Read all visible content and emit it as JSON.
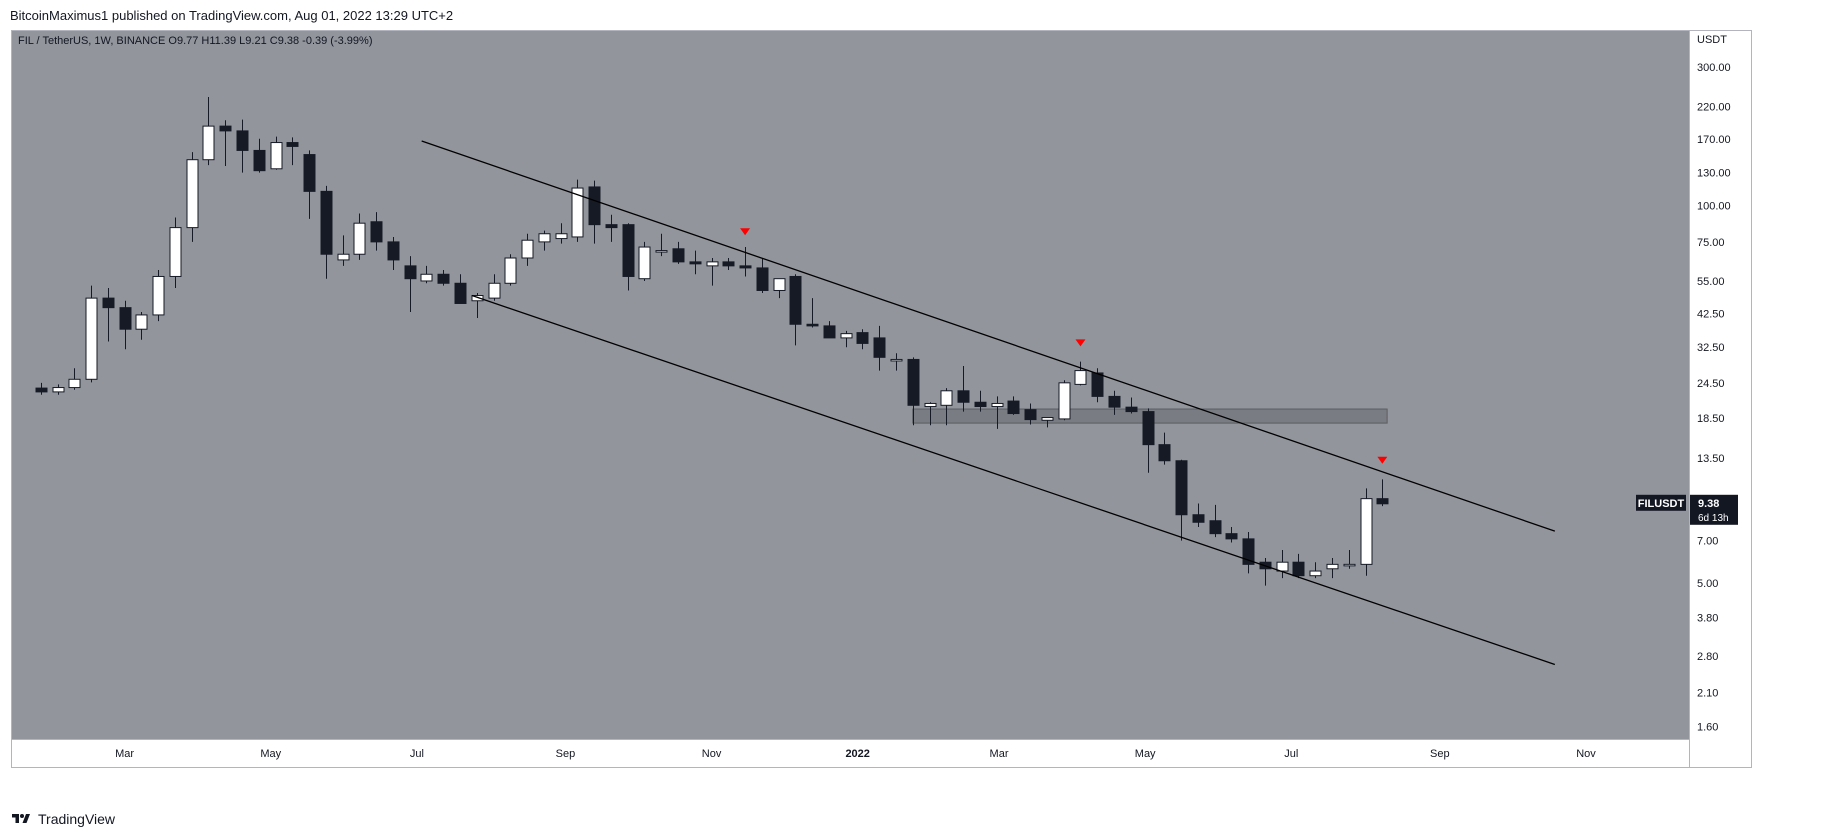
{
  "header": {
    "published_line": "BitcoinMaximus1 published on TradingView.com, Aug 01, 2022 13:29 UTC+2"
  },
  "watermark": {
    "text": "TradingView",
    "icon": "tradingview-logo-icon"
  },
  "colors": {
    "plot_bg": "#92959c",
    "up_body": "#ffffff",
    "down_body": "#161a25",
    "wick": "#161a25",
    "trendline": "#000000",
    "zone": "#6b6e74",
    "marker": "#ff0000",
    "axis_text": "#131722",
    "label_bg": "#131722",
    "label_text": "#ffffff"
  },
  "chart_data": {
    "type": "candlestick",
    "symbol_legend": {
      "title": "FIL / TetherUS, 1W, BINANCE",
      "items": [
        {
          "key": "O",
          "value": "9.77"
        },
        {
          "key": "H",
          "value": "11.39"
        },
        {
          "key": "L",
          "value": "9.21"
        },
        {
          "key": "C",
          "value": "9.38"
        }
      ],
      "change": "-0.39 (-3.99%)"
    },
    "y_axis": {
      "unit": "USDT",
      "scale": "log",
      "range": [
        1.45,
        400
      ],
      "ticks": [
        "300.00",
        "220.00",
        "170.00",
        "130.00",
        "100.00",
        "75.00",
        "55.00",
        "42.50",
        "32.50",
        "24.50",
        "18.50",
        "13.50",
        "7.00",
        "5.00",
        "3.80",
        "2.80",
        "2.10",
        "1.60"
      ]
    },
    "x_axis": {
      "ticks": [
        "Mar",
        "May",
        "Jul",
        "Sep",
        "Nov",
        "2022",
        "Mar",
        "May",
        "Jul",
        "Sep",
        "Nov"
      ],
      "tick_dates": [
        "2021-03-01",
        "2021-05-01",
        "2021-07-01",
        "2021-09-01",
        "2021-11-01",
        "2022-01-01",
        "2022-03-01",
        "2022-05-01",
        "2022-07-01",
        "2022-09-01",
        "2022-11-01"
      ],
      "range": [
        "2021-01-13",
        "2022-12-14"
      ]
    },
    "grid": false,
    "candles": [
      {
        "date": "2021-01-25",
        "o": 23.5,
        "h": 24.5,
        "l": 22.3,
        "c": 22.8
      },
      {
        "date": "2021-02-01",
        "o": 22.8,
        "h": 24.2,
        "l": 22.3,
        "c": 23.6
      },
      {
        "date": "2021-02-08",
        "o": 23.6,
        "h": 27.5,
        "l": 23.2,
        "c": 25.2
      },
      {
        "date": "2021-02-15",
        "o": 25.2,
        "h": 53,
        "l": 24.6,
        "c": 48
      },
      {
        "date": "2021-02-22",
        "o": 48,
        "h": 52,
        "l": 34,
        "c": 44.5
      },
      {
        "date": "2021-03-01",
        "o": 44.5,
        "h": 47,
        "l": 32,
        "c": 37.5
      },
      {
        "date": "2021-03-08",
        "o": 37.5,
        "h": 43,
        "l": 34.5,
        "c": 42
      },
      {
        "date": "2021-03-15",
        "o": 42,
        "h": 60,
        "l": 40,
        "c": 57
      },
      {
        "date": "2021-03-22",
        "o": 57,
        "h": 91,
        "l": 52,
        "c": 84
      },
      {
        "date": "2021-03-29",
        "o": 84,
        "h": 153,
        "l": 75,
        "c": 144
      },
      {
        "date": "2021-04-05",
        "o": 144,
        "h": 237,
        "l": 138,
        "c": 188
      },
      {
        "date": "2021-04-12",
        "o": 188,
        "h": 197,
        "l": 137,
        "c": 181
      },
      {
        "date": "2021-04-19",
        "o": 181,
        "h": 198,
        "l": 130,
        "c": 155
      },
      {
        "date": "2021-04-26",
        "o": 155,
        "h": 170,
        "l": 130,
        "c": 132
      },
      {
        "date": "2021-05-03",
        "o": 134,
        "h": 173,
        "l": 133,
        "c": 165
      },
      {
        "date": "2021-05-10",
        "o": 165,
        "h": 172,
        "l": 138,
        "c": 160
      },
      {
        "date": "2021-05-17",
        "o": 150,
        "h": 155,
        "l": 90,
        "c": 112
      },
      {
        "date": "2021-05-24",
        "o": 112,
        "h": 117,
        "l": 56,
        "c": 68
      },
      {
        "date": "2021-05-31",
        "o": 65,
        "h": 79,
        "l": 62,
        "c": 68
      },
      {
        "date": "2021-06-07",
        "o": 68,
        "h": 94,
        "l": 65,
        "c": 87
      },
      {
        "date": "2021-06-14",
        "o": 88,
        "h": 95,
        "l": 70,
        "c": 75
      },
      {
        "date": "2021-06-21",
        "o": 75,
        "h": 78,
        "l": 60,
        "c": 65
      },
      {
        "date": "2021-06-28",
        "o": 62,
        "h": 67,
        "l": 43,
        "c": 56
      },
      {
        "date": "2021-07-05",
        "o": 55,
        "h": 62,
        "l": 54,
        "c": 58
      },
      {
        "date": "2021-07-12",
        "o": 58,
        "h": 60,
        "l": 53,
        "c": 54
      },
      {
        "date": "2021-07-19",
        "o": 54,
        "h": 58,
        "l": 46,
        "c": 46
      },
      {
        "date": "2021-07-26",
        "o": 47,
        "h": 50,
        "l": 41,
        "c": 49
      },
      {
        "date": "2021-08-02",
        "o": 48,
        "h": 58,
        "l": 47,
        "c": 54
      },
      {
        "date": "2021-08-09",
        "o": 54,
        "h": 68,
        "l": 53,
        "c": 66
      },
      {
        "date": "2021-08-16",
        "o": 66,
        "h": 80,
        "l": 62,
        "c": 76
      },
      {
        "date": "2021-08-23",
        "o": 75,
        "h": 82,
        "l": 70,
        "c": 80
      },
      {
        "date": "2021-08-30",
        "o": 77,
        "h": 87,
        "l": 74,
        "c": 80
      },
      {
        "date": "2021-09-06",
        "o": 78,
        "h": 123,
        "l": 75,
        "c": 115
      },
      {
        "date": "2021-09-13",
        "o": 116,
        "h": 122,
        "l": 74,
        "c": 86
      },
      {
        "date": "2021-09-20",
        "o": 86,
        "h": 93,
        "l": 75,
        "c": 84
      },
      {
        "date": "2021-09-27",
        "o": 86,
        "h": 87,
        "l": 51,
        "c": 57
      },
      {
        "date": "2021-10-04",
        "o": 56,
        "h": 75,
        "l": 55,
        "c": 72
      },
      {
        "date": "2021-10-11",
        "o": 70,
        "h": 80,
        "l": 67,
        "c": 70
      },
      {
        "date": "2021-10-18",
        "o": 71,
        "h": 75,
        "l": 63,
        "c": 64
      },
      {
        "date": "2021-10-25",
        "o": 64,
        "h": 70,
        "l": 58,
        "c": 63
      },
      {
        "date": "2021-11-01",
        "o": 62,
        "h": 66,
        "l": 53,
        "c": 64
      },
      {
        "date": "2021-11-08",
        "o": 64,
        "h": 66,
        "l": 60,
        "c": 62
      },
      {
        "date": "2021-11-15",
        "o": 62,
        "h": 72,
        "l": 57,
        "c": 61
      },
      {
        "date": "2021-11-22",
        "o": 61,
        "h": 66,
        "l": 50,
        "c": 51
      },
      {
        "date": "2021-11-29",
        "o": 51,
        "h": 55,
        "l": 48,
        "c": 56
      },
      {
        "date": "2021-12-06",
        "o": 57,
        "h": 58,
        "l": 33,
        "c": 39
      },
      {
        "date": "2021-12-13",
        "o": 39,
        "h": 48,
        "l": 38,
        "c": 38.5
      },
      {
        "date": "2021-12-20",
        "o": 38.5,
        "h": 40,
        "l": 35,
        "c": 35
      },
      {
        "date": "2021-12-27",
        "o": 35,
        "h": 37,
        "l": 32.5,
        "c": 36.2
      },
      {
        "date": "2022-01-03",
        "o": 36.5,
        "h": 37.5,
        "l": 32,
        "c": 33.5
      },
      {
        "date": "2022-01-10",
        "o": 35,
        "h": 38.5,
        "l": 27,
        "c": 30
      },
      {
        "date": "2022-01-17",
        "o": 29.5,
        "h": 31,
        "l": 27,
        "c": 29.5
      },
      {
        "date": "2022-01-24",
        "o": 29.5,
        "h": 30,
        "l": 17.5,
        "c": 20.5
      },
      {
        "date": "2022-01-31",
        "o": 20.3,
        "h": 21,
        "l": 17.5,
        "c": 20.8
      },
      {
        "date": "2022-02-07",
        "o": 20.5,
        "h": 23.5,
        "l": 17.5,
        "c": 23
      },
      {
        "date": "2022-02-14",
        "o": 23,
        "h": 28,
        "l": 19.5,
        "c": 21
      },
      {
        "date": "2022-02-21",
        "o": 21,
        "h": 23,
        "l": 19.5,
        "c": 20.3
      },
      {
        "date": "2022-02-28",
        "o": 20.3,
        "h": 22,
        "l": 17,
        "c": 20.8
      },
      {
        "date": "2022-03-07",
        "o": 21.2,
        "h": 22,
        "l": 19,
        "c": 19.2
      },
      {
        "date": "2022-03-14",
        "o": 19.8,
        "h": 20.8,
        "l": 17.6,
        "c": 18.3
      },
      {
        "date": "2022-03-21",
        "o": 18.2,
        "h": 18.6,
        "l": 17.2,
        "c": 18.6
      },
      {
        "date": "2022-03-28",
        "o": 18.4,
        "h": 25,
        "l": 18.2,
        "c": 24.5
      },
      {
        "date": "2022-04-04",
        "o": 24.2,
        "h": 29,
        "l": 24,
        "c": 27
      },
      {
        "date": "2022-04-11",
        "o": 26.5,
        "h": 27.5,
        "l": 21,
        "c": 22
      },
      {
        "date": "2022-04-18",
        "o": 22,
        "h": 23,
        "l": 19,
        "c": 20.2
      },
      {
        "date": "2022-04-25",
        "o": 20.2,
        "h": 21.8,
        "l": 19.2,
        "c": 19.5
      },
      {
        "date": "2022-05-02",
        "o": 19.5,
        "h": 20,
        "l": 12,
        "c": 15
      },
      {
        "date": "2022-05-09",
        "o": 15,
        "h": 16.5,
        "l": 12.8,
        "c": 13.2
      },
      {
        "date": "2022-05-16",
        "o": 13.2,
        "h": 13.3,
        "l": 7,
        "c": 8.6
      },
      {
        "date": "2022-05-23",
        "o": 8.6,
        "h": 9.4,
        "l": 7.8,
        "c": 8.1
      },
      {
        "date": "2022-05-30",
        "o": 8.2,
        "h": 9.3,
        "l": 7.2,
        "c": 7.4
      },
      {
        "date": "2022-06-06",
        "o": 7.4,
        "h": 7.8,
        "l": 6.9,
        "c": 7.1
      },
      {
        "date": "2022-06-13",
        "o": 7.1,
        "h": 7.5,
        "l": 5.4,
        "c": 5.8
      },
      {
        "date": "2022-06-20",
        "o": 5.9,
        "h": 6.1,
        "l": 4.9,
        "c": 5.6
      },
      {
        "date": "2022-06-27",
        "o": 5.5,
        "h": 6.5,
        "l": 5.2,
        "c": 5.9
      },
      {
        "date": "2022-07-04",
        "o": 5.9,
        "h": 6.3,
        "l": 5.2,
        "c": 5.3
      },
      {
        "date": "2022-07-11",
        "o": 5.3,
        "h": 5.9,
        "l": 5.2,
        "c": 5.5
      },
      {
        "date": "2022-07-18",
        "o": 5.6,
        "h": 6.1,
        "l": 5.2,
        "c": 5.8
      },
      {
        "date": "2022-07-25",
        "o": 5.8,
        "h": 6.5,
        "l": 5.6,
        "c": 5.8
      },
      {
        "date": "2022-08-01",
        "o": 5.8,
        "h": 10.6,
        "l": 5.3,
        "c": 9.77
      },
      {
        "date": "2022-08-08",
        "o": 9.77,
        "h": 11.39,
        "l": 9.21,
        "c": 9.38
      }
    ],
    "trendlines": [
      {
        "name": "descending resistance",
        "from": {
          "date": "2021-07-03",
          "price": 167
        },
        "to": {
          "date": "2022-10-19",
          "price": 7.55
        }
      },
      {
        "name": "descending support",
        "from": {
          "date": "2021-07-24",
          "price": 49
        },
        "to": {
          "date": "2022-10-19",
          "price": 2.62
        }
      }
    ],
    "zones": [
      {
        "name": "horizontal resistance",
        "from_date": "2022-01-24",
        "to_date": "2022-08-10",
        "low": 17.8,
        "high": 19.9
      }
    ],
    "markers": [
      {
        "type": "red-down-arrow",
        "date": "2021-11-15",
        "price": 81
      },
      {
        "type": "red-down-arrow",
        "date": "2022-04-04",
        "price": 33.5
      },
      {
        "type": "red-down-arrow",
        "date": "2022-08-08",
        "price": 13.2
      }
    ],
    "last_price_label": {
      "symbol": "FILUSDT",
      "price": "9.38",
      "countdown": "6d 13h"
    }
  }
}
